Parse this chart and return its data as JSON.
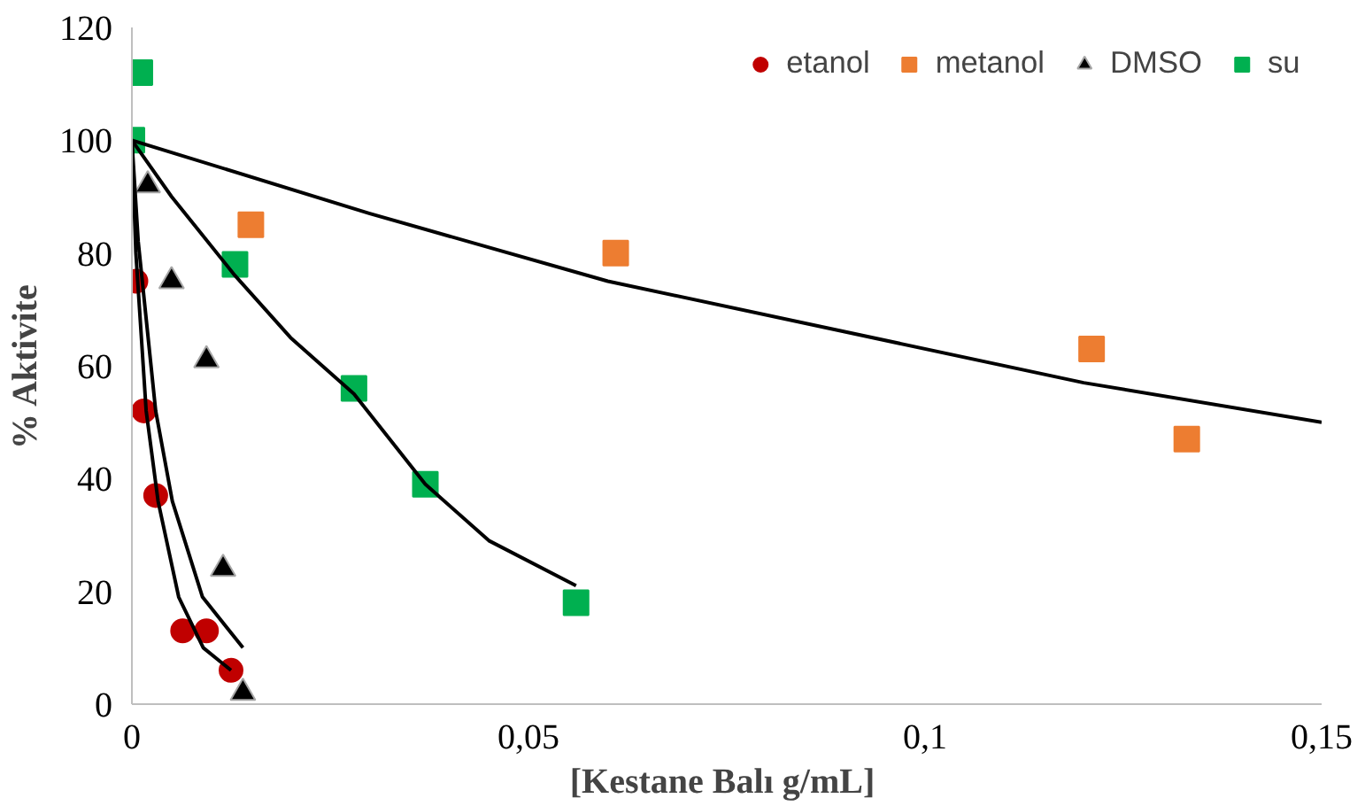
{
  "chart_data": {
    "type": "scatter",
    "xlabel": "[Kestane  Balı g/mL]",
    "ylabel": "% Aktivite",
    "xlim": [
      0,
      0.15
    ],
    "ylim": [
      0,
      120
    ],
    "xticks": [
      0,
      {
        "value": 0.05,
        "label": "0,05"
      },
      {
        "value": 0.1,
        "label": "0,1"
      },
      {
        "value": 0.15,
        "label": "0,15"
      }
    ],
    "yticks": [
      0,
      20,
      40,
      60,
      80,
      100,
      120
    ],
    "grid": false,
    "legend": "top right",
    "series": [
      {
        "name": "etanol",
        "color": "#c00000",
        "marker": "circle",
        "x": [
          0.0005,
          0.0015,
          0.003,
          0.0064,
          0.0094,
          0.0125
        ],
        "values": [
          75,
          52,
          37,
          13,
          13,
          6
        ]
      },
      {
        "name": "metanol",
        "color": "#ed7d31",
        "marker": "square",
        "x": [
          0.015,
          0.061,
          0.121,
          0.133
        ],
        "values": [
          85,
          80,
          63,
          47
        ]
      },
      {
        "name": "DMSO",
        "color": "#000000",
        "marker": "triangle",
        "x": [
          0.002,
          0.005,
          0.0094,
          0.0115,
          0.014
        ],
        "values": [
          92,
          75,
          61,
          24,
          2
        ]
      },
      {
        "name": "su",
        "color": "#00b050",
        "marker": "square",
        "x": [
          0,
          0.001,
          0.013,
          0.028,
          0.037,
          0.056
        ],
        "values": [
          100,
          112,
          78,
          56,
          39,
          18
        ]
      },
      {
        "type": "line",
        "color": "#000000",
        "x": [
          0,
          0.03,
          0.06,
          0.09,
          0.12,
          0.15
        ],
        "values": [
          100,
          87,
          75,
          66,
          57,
          50
        ]
      },
      {
        "type": "line",
        "color": "#000000",
        "x": [
          0,
          0.005,
          0.013,
          0.02,
          0.028,
          0.037,
          0.045,
          0.056
        ],
        "values": [
          100,
          90,
          76,
          65,
          55,
          39,
          29,
          21
        ]
      },
      {
        "type": "line",
        "color": "#000000",
        "x": [
          0,
          0.0005,
          0.0018,
          0.0033,
          0.0059,
          0.009,
          0.0125
        ],
        "values": [
          100,
          80,
          52,
          36,
          19,
          10,
          6
        ]
      },
      {
        "type": "line",
        "color": "#000000",
        "x": [
          0,
          0.0008,
          0.003,
          0.0051,
          0.0089,
          0.014
        ],
        "values": [
          100,
          82,
          52,
          36,
          19,
          10
        ]
      }
    ]
  }
}
